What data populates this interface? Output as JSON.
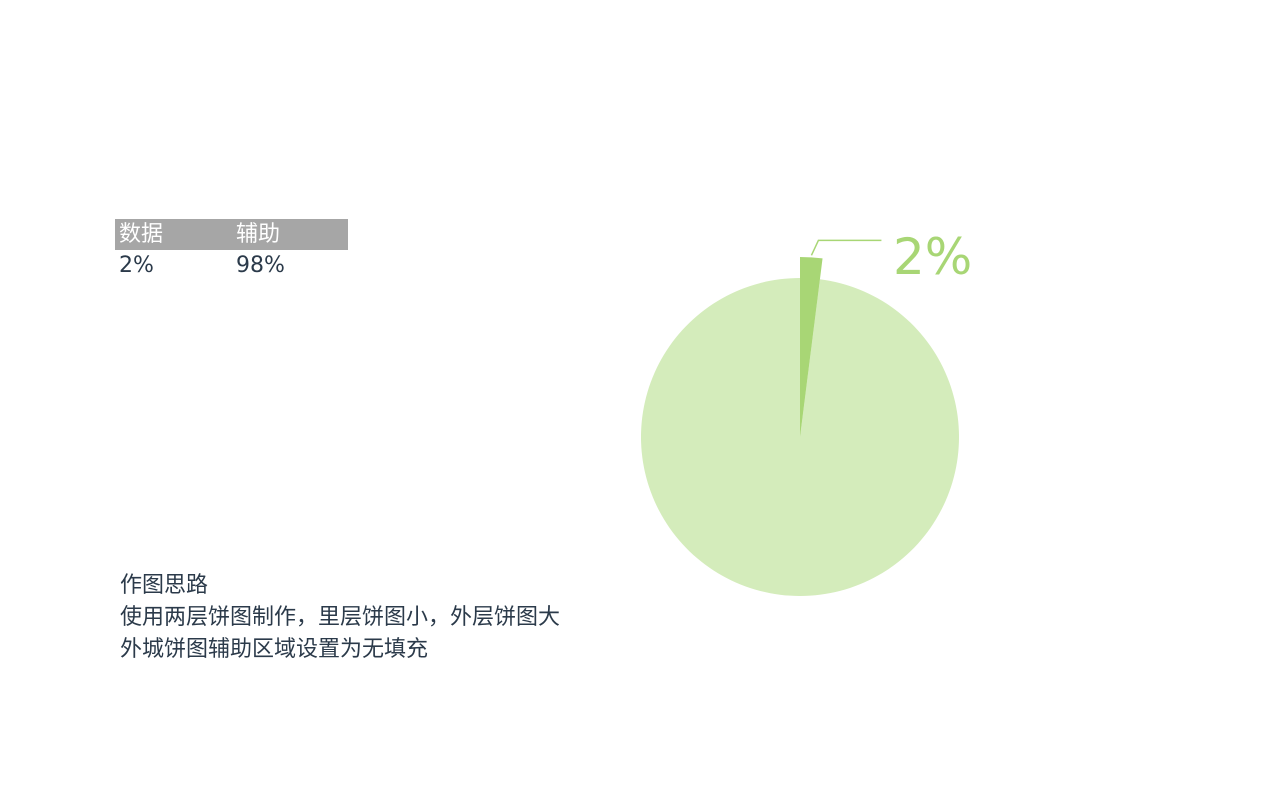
{
  "table": {
    "headers": [
      "数据",
      "辅助"
    ],
    "row": [
      "2%",
      "98%"
    ]
  },
  "notes": {
    "heading": "作图思路",
    "lines": [
      "使用两层饼图制作，里层饼图小，外层饼图大",
      "外城饼图辅助区域设置为无填充"
    ]
  },
  "chart_data": {
    "type": "pie",
    "categories": [
      "数据",
      "辅助"
    ],
    "values": [
      2,
      98
    ],
    "data_label": "2%",
    "colors": {
      "data": "#a8d675",
      "auxiliary": "#d4ecbb",
      "leader_line": "#a8d675",
      "label": "#a8d675"
    }
  }
}
